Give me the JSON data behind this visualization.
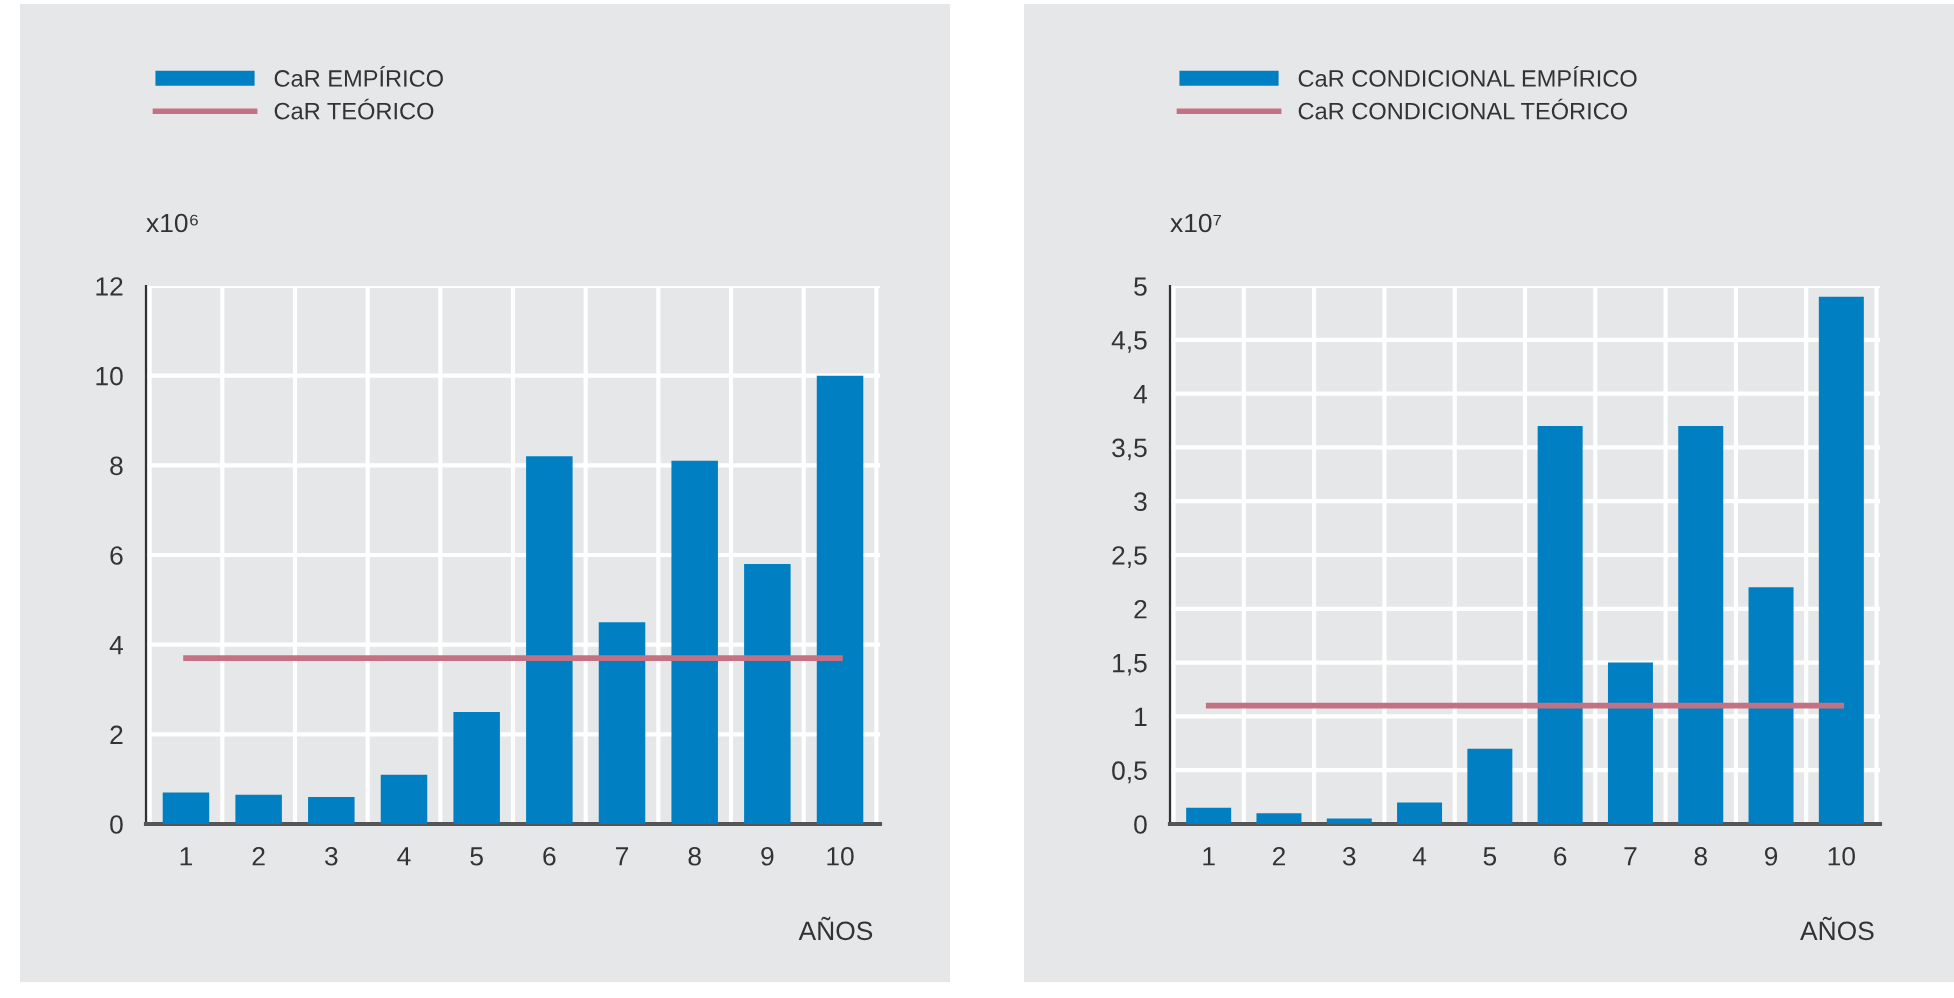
{
  "chart_data": [
    {
      "type": "bar",
      "ylabel": "x10⁶",
      "xlabel": "AÑOS",
      "categories": [
        "1",
        "2",
        "3",
        "4",
        "5",
        "6",
        "7",
        "8",
        "9",
        "10"
      ],
      "series": [
        {
          "name": "CaR EMPÍRICO",
          "color": "#0080c2",
          "values": [
            0.7,
            0.65,
            0.6,
            1.1,
            2.5,
            8.2,
            4.5,
            8.1,
            5.8,
            10.0
          ]
        },
        {
          "name": "CaR TEÓRICO",
          "type": "line",
          "color": "#c47283",
          "values": [
            3.7,
            3.7,
            3.7,
            3.7,
            3.7,
            3.7,
            3.7,
            3.7,
            3.7,
            3.7
          ]
        }
      ],
      "ylim": [
        0,
        12
      ],
      "yticks": [
        0,
        2,
        4,
        6,
        8,
        10,
        12
      ],
      "grid": true,
      "legend": "top left"
    },
    {
      "type": "bar",
      "ylabel": "x10⁷",
      "xlabel": "AÑOS",
      "categories": [
        "1",
        "2",
        "3",
        "4",
        "5",
        "6",
        "7",
        "8",
        "9",
        "10"
      ],
      "series": [
        {
          "name": "CaR CONDICIONAL EMPÍRICO",
          "color": "#0080c2",
          "values": [
            0.15,
            0.1,
            0.05,
            0.2,
            0.7,
            3.7,
            1.5,
            3.7,
            2.2,
            4.9
          ]
        },
        {
          "name": "CaR CONDICIONAL TEÓRICO",
          "type": "line",
          "color": "#c47283",
          "values": [
            1.1,
            1.1,
            1.1,
            1.1,
            1.1,
            1.1,
            1.1,
            1.1,
            1.1,
            1.1
          ]
        }
      ],
      "ylim": [
        0,
        5
      ],
      "yticks": [
        0,
        {
          "value": 0.5,
          "label": "0,5"
        },
        1,
        {
          "value": 1.5,
          "label": "1,5"
        },
        2,
        {
          "value": 2.5,
          "label": "2,5"
        },
        3,
        {
          "value": 3.5,
          "label": "3,5"
        },
        4,
        {
          "value": 4.5,
          "label": "4,5"
        },
        5
      ],
      "grid": true,
      "legend": "top left"
    }
  ]
}
